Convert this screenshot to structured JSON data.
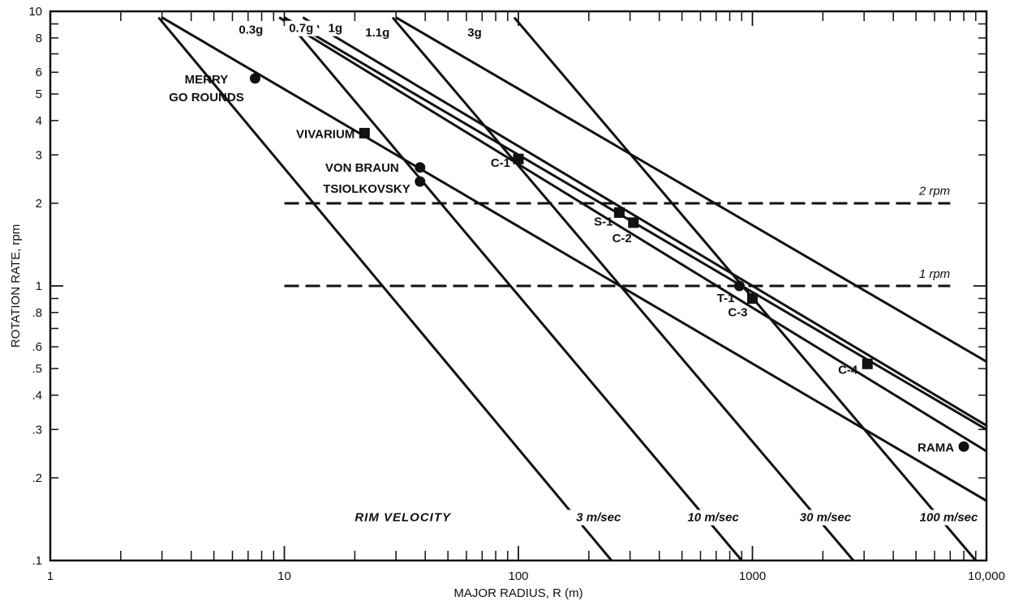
{
  "chart_data": {
    "type": "line",
    "xscale": "log",
    "yscale": "log",
    "xlim": [
      1,
      10000
    ],
    "ylim": [
      0.1,
      10
    ],
    "xlabel": "MAJOR RADIUS, R (m)",
    "ylabel": "ROTATION RATE, rpm",
    "x_tick_labels": [
      {
        "value": 1,
        "label": "1"
      },
      {
        "value": 10,
        "label": "10"
      },
      {
        "value": 100,
        "label": "100"
      },
      {
        "value": 1000,
        "label": "1000"
      },
      {
        "value": 10000,
        "label": "10,000"
      }
    ],
    "y_tick_labels": [
      {
        "value": 10,
        "label": "10"
      },
      {
        "value": 8,
        "label": "8"
      },
      {
        "value": 6,
        "label": "6"
      },
      {
        "value": 5,
        "label": "5"
      },
      {
        "value": 4,
        "label": "4"
      },
      {
        "value": 3,
        "label": "3"
      },
      {
        "value": 2,
        "label": "2"
      },
      {
        "value": 1,
        "label": "1"
      },
      {
        "value": 0.8,
        "label": ".8"
      },
      {
        "value": 0.6,
        "label": ".6"
      },
      {
        "value": 0.5,
        "label": ".5"
      },
      {
        "value": 0.4,
        "label": ".4"
      },
      {
        "value": 0.3,
        "label": ".3"
      },
      {
        "value": 0.2,
        "label": ".2"
      },
      {
        "value": 0.1,
        "label": ".1"
      }
    ],
    "gravity_lines": [
      {
        "label": "0.3g",
        "x": [
          3,
          10000
        ],
        "y": [
          9.5,
          0.165
        ],
        "label_at": [
          7.2,
          8.3
        ]
      },
      {
        "label": "0.7g",
        "x": [
          9.5,
          10000
        ],
        "y": [
          9.5,
          0.25
        ],
        "label_at": [
          11.8,
          8.4
        ]
      },
      {
        "label": "1g",
        "x": [
          10,
          10000
        ],
        "y": [
          9.5,
          0.3
        ],
        "label_at": [
          16.5,
          8.4
        ]
      },
      {
        "label": "1.1g",
        "x": [
          12,
          10000
        ],
        "y": [
          9.5,
          0.31
        ],
        "label_at": [
          25,
          8.1
        ]
      },
      {
        "label": "3g",
        "x": [
          30,
          10000
        ],
        "y": [
          9.5,
          0.53
        ],
        "label_at": [
          65,
          8.1
        ]
      }
    ],
    "rim_velocity_title": "RIM VELOCITY",
    "rim_velocity_lines": [
      {
        "label": "3 m/sec",
        "x": [
          2.9,
          250
        ],
        "y": [
          9.5,
          0.1
        ],
        "label_at": [
          220,
          0.139
        ]
      },
      {
        "label": "10 m/sec",
        "x": [
          10,
          900
        ],
        "y": [
          9.5,
          0.1
        ],
        "label_at": [
          680,
          0.139
        ]
      },
      {
        "label": "30 m/sec",
        "x": [
          29,
          2700
        ],
        "y": [
          9.5,
          0.1
        ],
        "label_at": [
          2050,
          0.139
        ]
      },
      {
        "label": "100 m/sec",
        "x": [
          96,
          9000
        ],
        "y": [
          9.5,
          0.1
        ],
        "label_at": [
          6900,
          0.139
        ]
      }
    ],
    "rpm_lines": [
      {
        "label": "2 rpm",
        "y": 2,
        "x": [
          10,
          7000
        ],
        "label_at": [
          6000,
          2.15
        ]
      },
      {
        "label": "1 rpm",
        "y": 1,
        "x": [
          10,
          7000
        ],
        "label_at": [
          6000,
          1.07
        ]
      }
    ],
    "points": [
      {
        "label": "MERRY\nGO ROUNDS",
        "x": 7.5,
        "y": 5.7,
        "marker": "circle"
      },
      {
        "label": "VIVARIUM",
        "x": 22,
        "y": 3.6,
        "marker": "square"
      },
      {
        "label": "VON BRAUN",
        "x": 38,
        "y": 2.7,
        "marker": "circle"
      },
      {
        "label": "TSIOLKOVSKY",
        "x": 38,
        "y": 2.4,
        "marker": "circle"
      },
      {
        "label": "C-1",
        "x": 100,
        "y": 2.9,
        "marker": "square"
      },
      {
        "label": "S-1",
        "x": 270,
        "y": 1.85,
        "marker": "square"
      },
      {
        "label": "C-2",
        "x": 310,
        "y": 1.7,
        "marker": "square"
      },
      {
        "label": "T-1",
        "x": 880,
        "y": 1.0,
        "marker": "circle"
      },
      {
        "label": "C-3",
        "x": 1000,
        "y": 0.9,
        "marker": "square"
      },
      {
        "label": "C-4",
        "x": 3100,
        "y": 0.52,
        "marker": "square"
      },
      {
        "label": "RAMA",
        "x": 8000,
        "y": 0.26,
        "marker": "circle"
      }
    ]
  }
}
